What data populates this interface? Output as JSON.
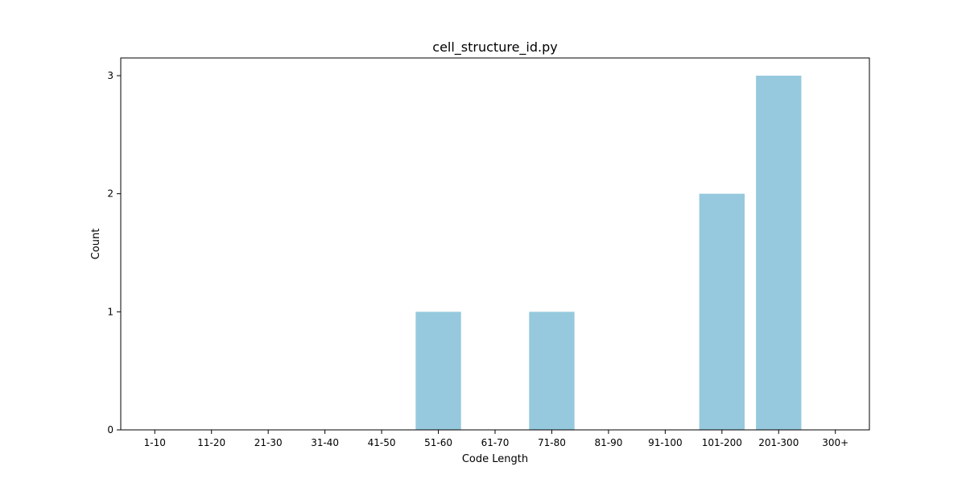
{
  "chart_data": {
    "type": "bar",
    "title": "cell_structure_id.py",
    "xlabel": "Code Length",
    "ylabel": "Count",
    "categories": [
      "1-10",
      "11-20",
      "21-30",
      "31-40",
      "41-50",
      "51-60",
      "61-70",
      "71-80",
      "81-90",
      "91-100",
      "101-200",
      "201-300",
      "300+"
    ],
    "values": [
      0,
      0,
      0,
      0,
      0,
      1,
      0,
      1,
      0,
      0,
      2,
      3,
      0
    ],
    "yticks": [
      0,
      1,
      2,
      3
    ],
    "ylim": [
      0,
      3.15
    ],
    "grid": false,
    "bar_color": "#96c9dd"
  }
}
